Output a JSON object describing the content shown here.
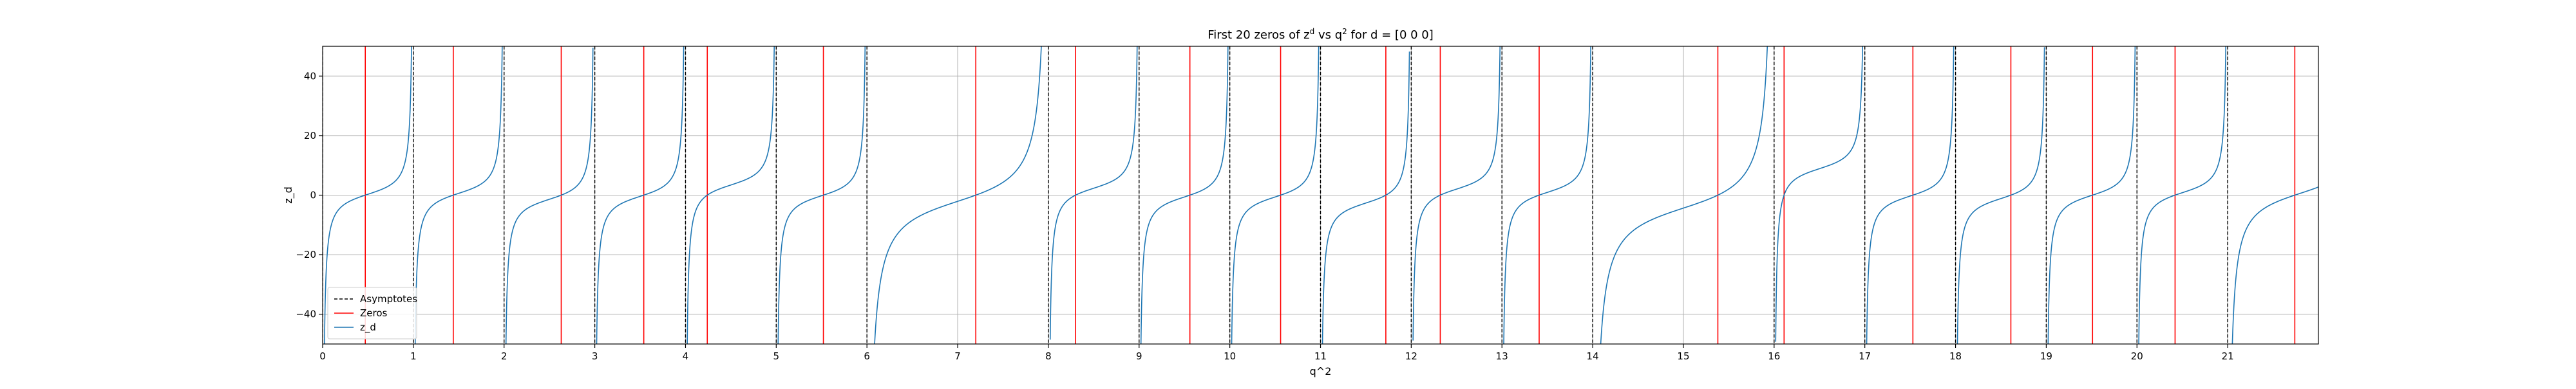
{
  "chart_data": {
    "type": "line",
    "title_parts": [
      "First 20 zeros of z",
      "d",
      " vs q",
      "2",
      " for d = [0 0 0]"
    ],
    "xlabel": "q^2",
    "ylabel": "z_d",
    "xlim": [
      0,
      22
    ],
    "ylim": [
      -50,
      50
    ],
    "xticks": [
      "0",
      "1",
      "2",
      "3",
      "4",
      "5",
      "6",
      "7",
      "8",
      "9",
      "10",
      "11",
      "12",
      "13",
      "14",
      "15",
      "16",
      "17",
      "18",
      "19",
      "20",
      "21"
    ],
    "yticks": [
      "−40",
      "−20",
      "0",
      "20",
      "40"
    ],
    "ytick_values": [
      -40,
      -20,
      0,
      20,
      40
    ],
    "grid": true,
    "legend": {
      "placement": "lower-left",
      "entries": [
        "Asymptotes",
        "Zeros",
        "z_d"
      ]
    },
    "colors": {
      "asymptote": "#000000",
      "zero": "#ff0000",
      "series": "#1f77b4",
      "grid": "#b0b0b0"
    },
    "asymptotes": [
      0,
      1,
      2,
      3,
      4,
      5,
      6,
      8,
      9,
      10,
      11,
      12,
      13,
      14,
      16,
      17,
      18,
      19,
      20,
      21
    ],
    "zeros": [
      0.47,
      1.44,
      2.63,
      3.54,
      4.24,
      5.52,
      7.2,
      8.3,
      9.56,
      10.56,
      11.72,
      12.32,
      13.41,
      15.38,
      16.11,
      17.53,
      18.61,
      19.51,
      20.42,
      21.74
    ],
    "series": [
      {
        "name": "z_d"
      }
    ]
  }
}
